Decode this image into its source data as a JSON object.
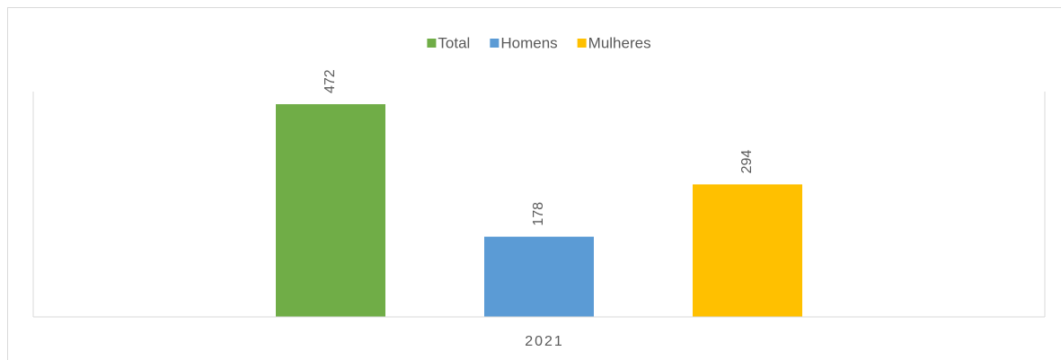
{
  "chart_data": {
    "type": "bar",
    "categories": [
      "2021"
    ],
    "series": [
      {
        "name": "Total",
        "color": "#70ad47",
        "values": [
          472
        ]
      },
      {
        "name": "Homens",
        "color": "#5b9bd5",
        "values": [
          178
        ]
      },
      {
        "name": "Mulheres",
        "color": "#ffc000",
        "values": [
          294
        ]
      }
    ],
    "ylim": [
      0,
      500
    ],
    "legend": "top"
  }
}
